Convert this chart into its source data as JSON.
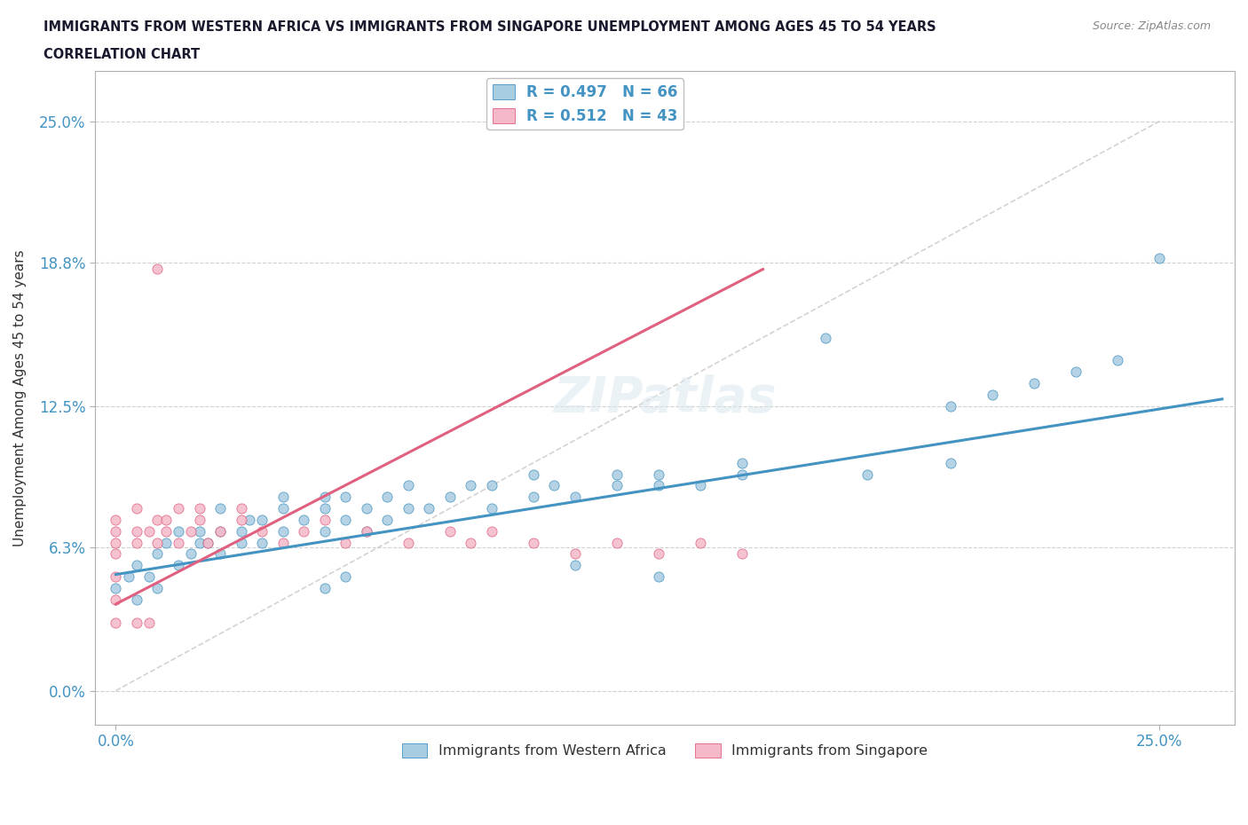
{
  "title_line1": "IMMIGRANTS FROM WESTERN AFRICA VS IMMIGRANTS FROM SINGAPORE UNEMPLOYMENT AMONG AGES 45 TO 54 YEARS",
  "title_line2": "CORRELATION CHART",
  "source": "Source: ZipAtlas.com",
  "ylabel": "Unemployment Among Ages 45 to 54 years",
  "xticklabels": [
    "0.0%",
    "25.0%"
  ],
  "yticklabels": [
    "0.0%",
    "6.3%",
    "12.5%",
    "18.8%",
    "25.0%"
  ],
  "ytick_values": [
    0.0,
    0.063,
    0.125,
    0.188,
    0.25
  ],
  "xtick_values": [
    0.0,
    0.25
  ],
  "xlim": [
    -0.005,
    0.268
  ],
  "ylim": [
    -0.015,
    0.272
  ],
  "watermark": "ZIPatlas",
  "blue_color": "#a8cce0",
  "pink_color": "#f4b8c8",
  "blue_edge_color": "#4393c3",
  "pink_edge_color": "#e06080",
  "blue_line_color": "#4393c3",
  "pink_line_color": "#e06080",
  "ref_line_color": "#c8c8c8",
  "legend_r1": "R = 0.497   N = 66",
  "legend_r2": "R = 0.512   N = 43",
  "bottom_legend1": "Immigrants from Western Africa",
  "bottom_legend2": "Immigrants from Singapore",
  "western_africa_scatter_x": [
    0.0,
    0.003,
    0.005,
    0.005,
    0.008,
    0.01,
    0.01,
    0.012,
    0.015,
    0.015,
    0.018,
    0.02,
    0.02,
    0.022,
    0.025,
    0.025,
    0.025,
    0.03,
    0.03,
    0.032,
    0.035,
    0.035,
    0.04,
    0.04,
    0.04,
    0.045,
    0.05,
    0.05,
    0.05,
    0.055,
    0.055,
    0.06,
    0.06,
    0.065,
    0.065,
    0.07,
    0.07,
    0.075,
    0.08,
    0.085,
    0.09,
    0.09,
    0.1,
    0.1,
    0.105,
    0.11,
    0.12,
    0.12,
    0.13,
    0.13,
    0.14,
    0.15,
    0.15,
    0.17,
    0.18,
    0.2,
    0.2,
    0.21,
    0.22,
    0.23,
    0.24,
    0.25,
    0.11,
    0.13,
    0.05,
    0.055
  ],
  "western_africa_scatter_y": [
    0.045,
    0.05,
    0.04,
    0.055,
    0.05,
    0.045,
    0.06,
    0.065,
    0.055,
    0.07,
    0.06,
    0.065,
    0.07,
    0.065,
    0.06,
    0.07,
    0.08,
    0.065,
    0.07,
    0.075,
    0.065,
    0.075,
    0.07,
    0.08,
    0.085,
    0.075,
    0.07,
    0.08,
    0.085,
    0.075,
    0.085,
    0.07,
    0.08,
    0.075,
    0.085,
    0.08,
    0.09,
    0.08,
    0.085,
    0.09,
    0.08,
    0.09,
    0.085,
    0.095,
    0.09,
    0.085,
    0.09,
    0.095,
    0.09,
    0.095,
    0.09,
    0.095,
    0.1,
    0.155,
    0.095,
    0.1,
    0.125,
    0.13,
    0.135,
    0.14,
    0.145,
    0.19,
    0.055,
    0.05,
    0.045,
    0.05
  ],
  "singapore_scatter_x": [
    0.0,
    0.0,
    0.0,
    0.0,
    0.0,
    0.005,
    0.005,
    0.005,
    0.008,
    0.01,
    0.01,
    0.01,
    0.012,
    0.012,
    0.015,
    0.015,
    0.018,
    0.02,
    0.02,
    0.022,
    0.025,
    0.03,
    0.03,
    0.035,
    0.04,
    0.045,
    0.05,
    0.055,
    0.06,
    0.07,
    0.08,
    0.085,
    0.09,
    0.1,
    0.11,
    0.12,
    0.13,
    0.14,
    0.15,
    0.0,
    0.005,
    0.008,
    0.0
  ],
  "singapore_scatter_y": [
    0.06,
    0.065,
    0.07,
    0.075,
    0.05,
    0.065,
    0.07,
    0.08,
    0.07,
    0.065,
    0.075,
    0.185,
    0.07,
    0.075,
    0.065,
    0.08,
    0.07,
    0.075,
    0.08,
    0.065,
    0.07,
    0.075,
    0.08,
    0.07,
    0.065,
    0.07,
    0.075,
    0.065,
    0.07,
    0.065,
    0.07,
    0.065,
    0.07,
    0.065,
    0.06,
    0.065,
    0.06,
    0.065,
    0.06,
    0.04,
    0.03,
    0.03,
    0.03
  ],
  "western_africa_trend_x": [
    0.0,
    0.265
  ],
  "western_africa_trend_y": [
    0.051,
    0.128
  ],
  "singapore_trend_x": [
    0.0,
    0.155
  ],
  "singapore_trend_y": [
    0.038,
    0.185
  ]
}
